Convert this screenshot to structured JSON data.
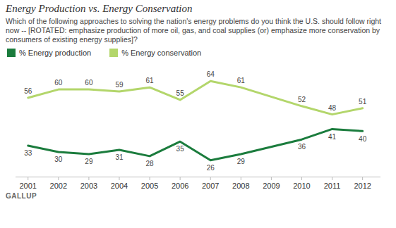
{
  "chart_data": {
    "type": "line",
    "title": "Energy Production vs. Energy Conservation",
    "subtitle": "Which of the following approaches to solving the nation's energy problems do you think the U.S. should follow right now -- [ROTATED: emphasize production of more oil, gas, and coal supplies (or) emphasize more conservation by consumers of existing energy supplies]?",
    "caption": "GALLUP",
    "x": [
      2001,
      2002,
      2003,
      2004,
      2005,
      2006,
      2007,
      2008,
      2010,
      2011,
      2012
    ],
    "series": [
      {
        "name": "% Energy production",
        "color": "#1b7c3d",
        "values": [
          33,
          30,
          29,
          31,
          28,
          35,
          26,
          29,
          36,
          41,
          40
        ]
      },
      {
        "name": "% Energy conservation",
        "color": "#b3d66b",
        "values": [
          56,
          60,
          60,
          59,
          61,
          55,
          64,
          61,
          52,
          48,
          51
        ]
      }
    ],
    "xlim": [
      2000.6,
      2012.6
    ],
    "xticks": [
      2001,
      2002,
      2003,
      2004,
      2005,
      2006,
      2007,
      2008,
      2009,
      2010,
      2011,
      2012
    ],
    "ylim": [
      18,
      70
    ],
    "legend": "top-left",
    "data_labels": true,
    "tick_labels": "x",
    "grid": false
  }
}
